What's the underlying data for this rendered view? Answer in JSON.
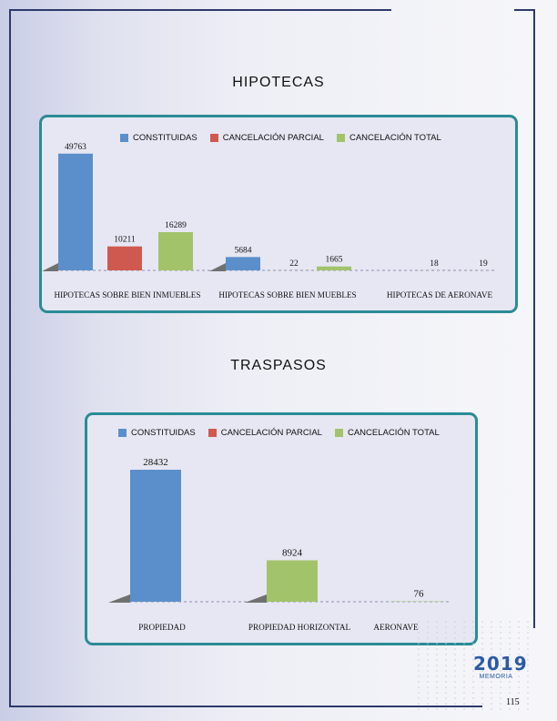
{
  "colors": {
    "constituidas": "#5b8fcb",
    "cancelacion_parcial": "#d0594f",
    "cancelacion_total": "#a3c36a",
    "frame": "#2a8c95"
  },
  "chart_data": [
    {
      "type": "bar",
      "title": "HIPOTECAS",
      "categories": [
        "HIPOTECAS SOBRE BIEN INMUEBLES",
        "HIPOTECAS SOBRE BIEN MUEBLES",
        "HIPOTECAS DE AERONAVE"
      ],
      "series": [
        {
          "name": "CONSTITUIDAS",
          "values": [
            49763,
            5684,
            null
          ]
        },
        {
          "name": "CANCELACIÓN PARCIAL",
          "values": [
            10211,
            22,
            18
          ]
        },
        {
          "name": "CANCELACIÓN TOTAL",
          "values": [
            16289,
            1665,
            19
          ]
        }
      ],
      "ylim": [
        0,
        52000
      ],
      "legend": "top",
      "grid": false
    },
    {
      "type": "bar",
      "title": "TRASPASOS",
      "categories": [
        "PROPIEDAD",
        "PROPIEDAD HORIZONTAL",
        "AERONAVE"
      ],
      "series": [
        {
          "name": "CONSTITUIDAS",
          "values": [
            28432,
            null,
            null
          ]
        },
        {
          "name": "CANCELACIÓN PARCIAL",
          "values": [
            null,
            null,
            null
          ]
        },
        {
          "name": "CANCELACIÓN TOTAL",
          "values": [
            null,
            8924,
            76
          ]
        }
      ],
      "ylim": [
        0,
        30000
      ],
      "legend": "top",
      "grid": false
    }
  ],
  "logo": {
    "year": "2019",
    "subtitle": "MEMORIA"
  },
  "page_number": "115"
}
